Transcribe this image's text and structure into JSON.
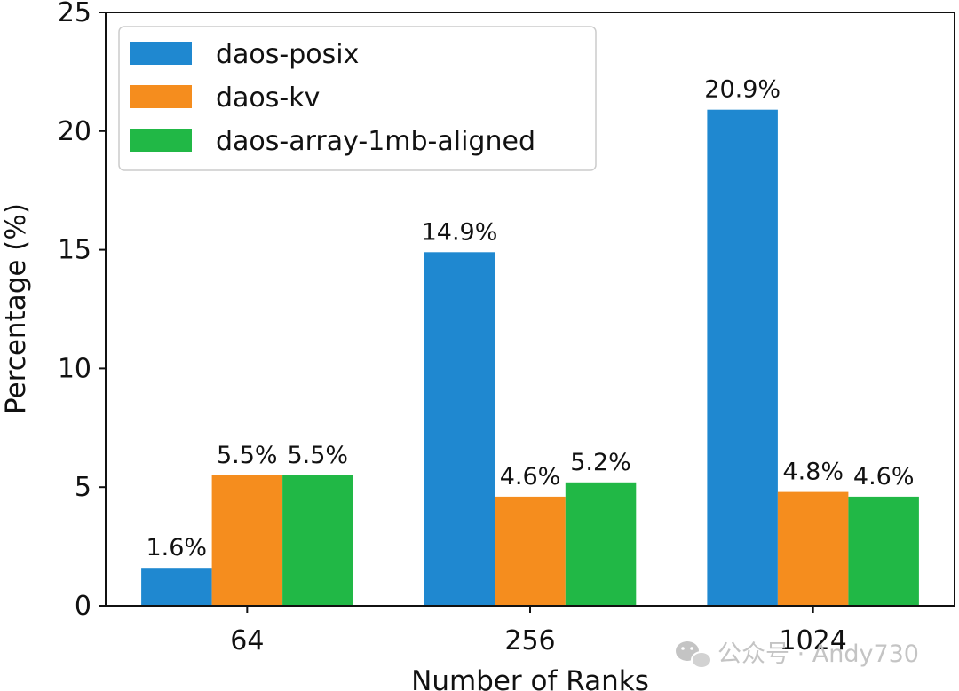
{
  "chart_data": {
    "type": "bar",
    "categories": [
      "64",
      "256",
      "1024"
    ],
    "series": [
      {
        "name": "daos-posix",
        "color": "#1f88d0",
        "values": [
          1.6,
          14.9,
          20.9
        ],
        "labels": [
          "1.6%",
          "14.9%",
          "20.9%"
        ]
      },
      {
        "name": "daos-kv",
        "color": "#f58d1e",
        "values": [
          5.5,
          4.6,
          4.8
        ],
        "labels": [
          "5.5%",
          "4.6%",
          "4.8%"
        ]
      },
      {
        "name": "daos-array-1mb-aligned",
        "color": "#21b846",
        "values": [
          5.5,
          5.2,
          4.6
        ],
        "labels": [
          "5.5%",
          "5.2%",
          "4.6%"
        ]
      }
    ],
    "xlabel": "Number of Ranks",
    "ylabel": "Percentage (%)",
    "ylim": [
      0,
      25
    ],
    "yticks": [
      0,
      5,
      10,
      15,
      20,
      25
    ],
    "grid": false,
    "legend_position": "top-left"
  },
  "watermark": {
    "text": "公众号 · Andy730",
    "icon": "wechat-icon"
  }
}
